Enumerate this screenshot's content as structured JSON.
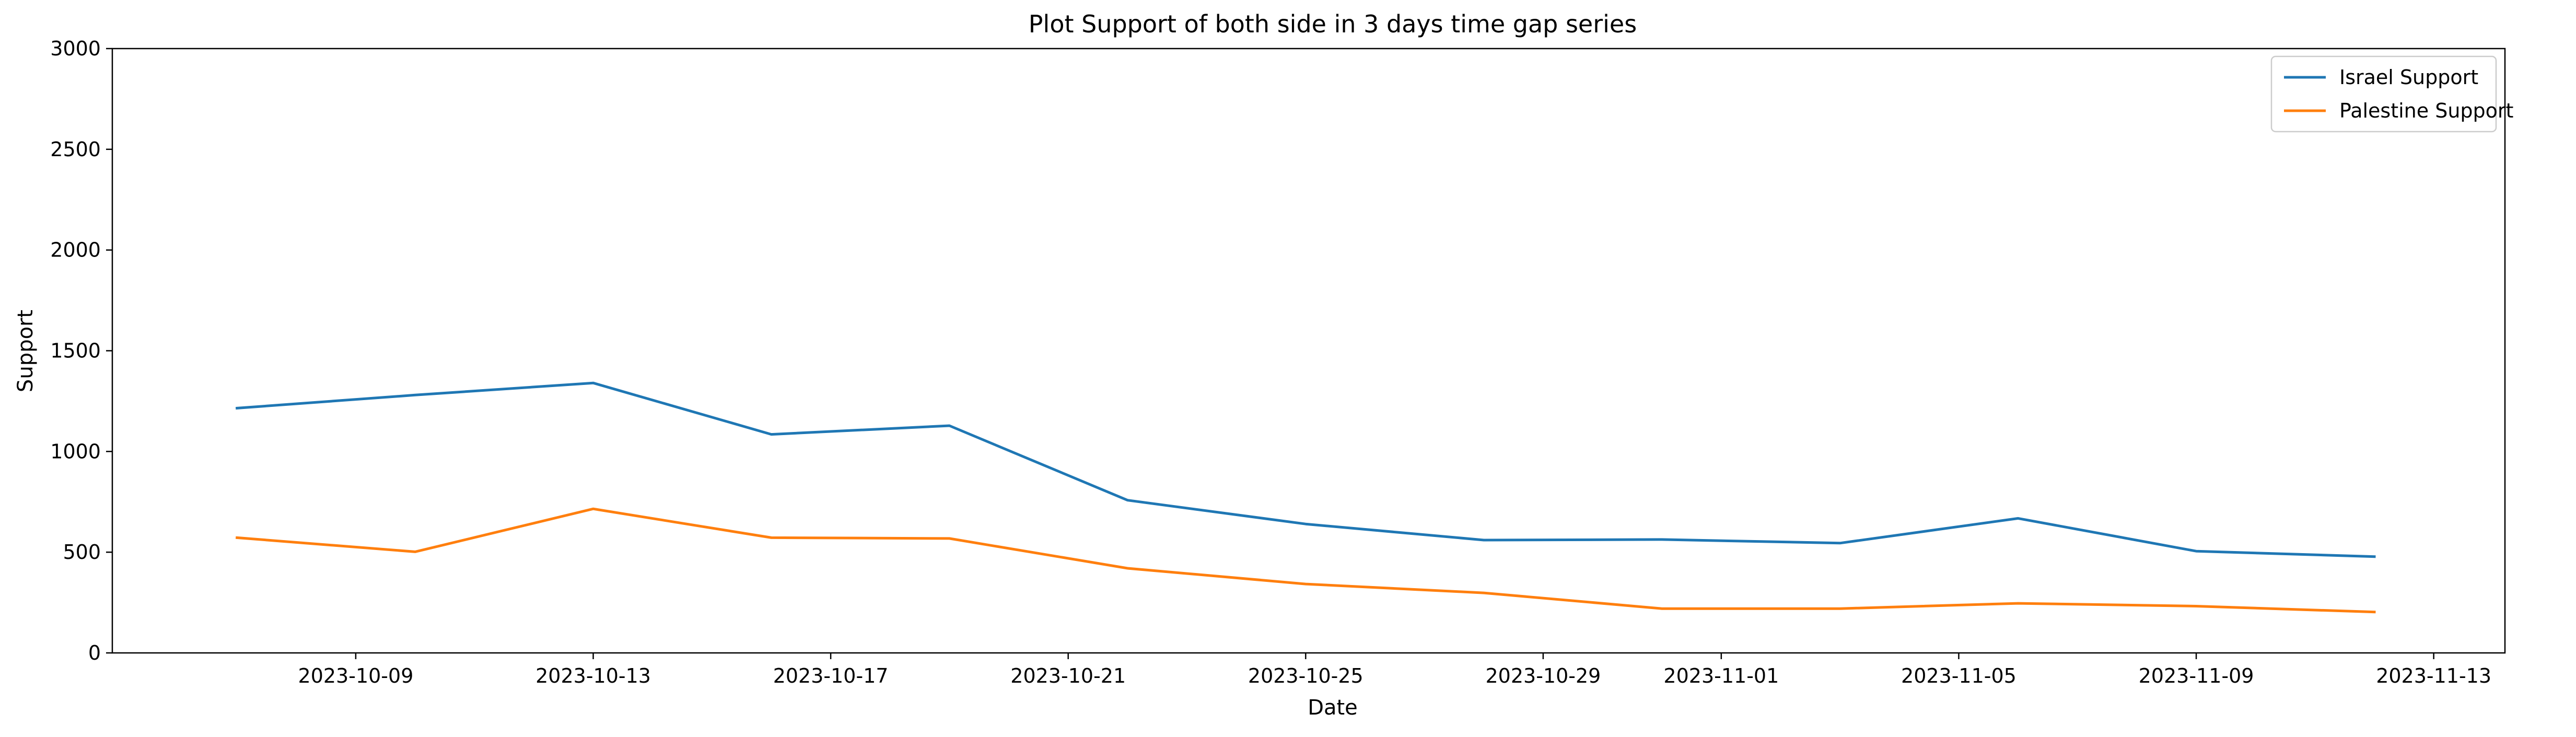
{
  "chart_data": {
    "type": "line",
    "title": "Plot Support of both side in 3 days time gap series",
    "xlabel": "Date",
    "ylabel": "Support",
    "x": [
      "2023-10-07",
      "2023-10-10",
      "2023-10-13",
      "2023-10-16",
      "2023-10-19",
      "2023-10-22",
      "2023-10-25",
      "2023-10-28",
      "2023-10-31",
      "2023-11-03",
      "2023-11-06",
      "2023-11-09",
      "2023-11-12"
    ],
    "series": [
      {
        "name": "Israel Support",
        "color": "#1f77b4",
        "values": [
          1215,
          1280,
          1340,
          1085,
          1128,
          758,
          640,
          560,
          563,
          545,
          668,
          505,
          478
        ]
      },
      {
        "name": "Palestine Support",
        "color": "#ff7f0e",
        "values": [
          572,
          502,
          715,
          572,
          568,
          420,
          342,
          298,
          220,
          220,
          246,
          232,
          203
        ]
      }
    ],
    "ylim": [
      0,
      3000
    ],
    "yticks": [
      "0",
      "500",
      "1000",
      "1500",
      "2000",
      "2500",
      "3000"
    ],
    "xlim": [
      "2023-10-05",
      "2023-11-14"
    ],
    "xticks": [
      "2023-10-09",
      "2023-10-13",
      "2023-10-17",
      "2023-10-21",
      "2023-10-25",
      "2023-10-29",
      "2023-11-01",
      "2023-11-05",
      "2023-11-09",
      "2023-11-13"
    ],
    "grid": false,
    "legend_position": "top-right"
  }
}
